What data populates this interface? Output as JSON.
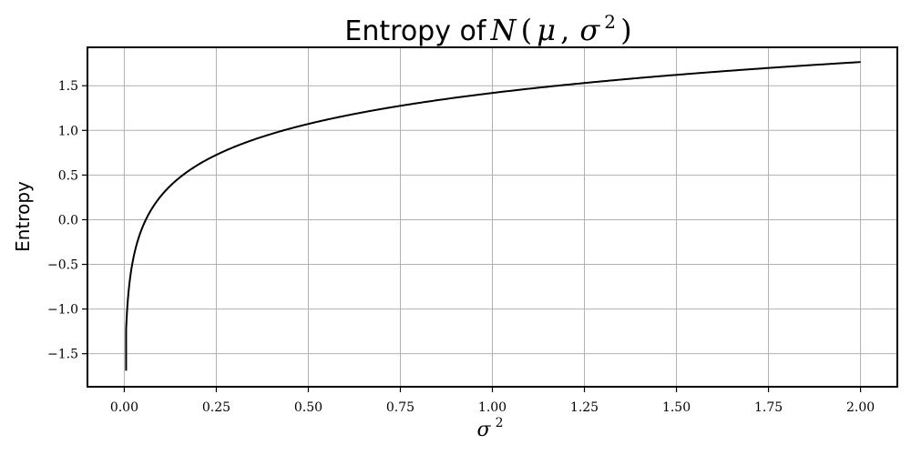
{
  "chart_data": {
    "type": "line",
    "title": "Entropy of N(μ, σ²)",
    "title_text": "Entropy of",
    "title_math": {
      "func": "N",
      "open": "(",
      "mu": "μ",
      "comma": ",",
      "sigma": "σ",
      "exp": "2",
      "close": ")"
    },
    "xlabel": "σ²",
    "xlabel_math": {
      "sigma": "σ",
      "exp": "2"
    },
    "ylabel": "Entropy",
    "xlim": [
      -0.1,
      2.1
    ],
    "ylim": [
      -1.87,
      1.93
    ],
    "xticks": [
      0.0,
      0.25,
      0.5,
      0.75,
      1.0,
      1.25,
      1.5,
      1.75,
      2.0
    ],
    "xtick_labels": [
      "0.00",
      "0.25",
      "0.50",
      "0.75",
      "1.00",
      "1.25",
      "1.50",
      "1.75",
      "2.00"
    ],
    "yticks": [
      -1.5,
      -1.0,
      -0.5,
      0.0,
      0.5,
      1.0,
      1.5
    ],
    "ytick_labels": [
      "−1.5",
      "−1.0",
      "−0.5",
      "0.0",
      "0.5",
      "1.0",
      "1.5"
    ],
    "grid": true,
    "series": [
      {
        "formula": "0.5*ln(2*pi*e*x)",
        "color": "#000000",
        "x_range": [
          0.005,
          2.0
        ],
        "points": [
          [
            0.005,
            -1.23
          ],
          [
            0.01,
            -0.88
          ],
          [
            0.02,
            -0.53
          ],
          [
            0.03,
            -0.33
          ],
          [
            0.05,
            -0.08
          ],
          [
            0.075,
            0.13
          ],
          [
            0.1,
            0.27
          ],
          [
            0.15,
            0.47
          ],
          [
            0.2,
            0.62
          ],
          [
            0.25,
            0.73
          ],
          [
            0.3,
            0.82
          ],
          [
            0.4,
            0.96
          ],
          [
            0.5,
            1.07
          ],
          [
            0.6,
            1.16
          ],
          [
            0.75,
            1.28
          ],
          [
            1.0,
            1.42
          ],
          [
            1.25,
            1.53
          ],
          [
            1.5,
            1.62
          ],
          [
            1.75,
            1.7
          ],
          [
            2.0,
            1.77
          ]
        ]
      }
    ]
  },
  "colors": {
    "line": "#000000",
    "grid": "#b0b0b0",
    "frame": "#000000",
    "background": "#ffffff"
  }
}
